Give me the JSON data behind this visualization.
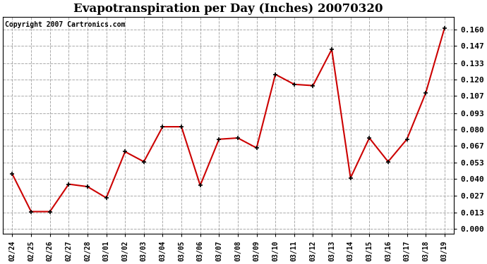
{
  "title": "Evapotranspiration per Day (Inches) 20070320",
  "copyright_text": "Copyright 2007 Cartronics.com",
  "x_labels": [
    "02/24",
    "02/25",
    "02/26",
    "02/27",
    "02/28",
    "03/01",
    "03/02",
    "03/03",
    "03/04",
    "03/05",
    "03/06",
    "03/07",
    "03/08",
    "03/09",
    "03/10",
    "03/11",
    "03/12",
    "03/13",
    "03/14",
    "03/15",
    "03/16",
    "03/17",
    "03/18",
    "03/19"
  ],
  "y_values": [
    0.044,
    0.014,
    0.014,
    0.036,
    0.034,
    0.025,
    0.062,
    0.054,
    0.082,
    0.082,
    0.035,
    0.072,
    0.073,
    0.065,
    0.124,
    0.116,
    0.115,
    0.144,
    0.041,
    0.073,
    0.054,
    0.072,
    0.109,
    0.161
  ],
  "line_color": "#cc0000",
  "marker": "+",
  "marker_color": "#000000",
  "marker_size": 5,
  "line_width": 1.5,
  "y_ticks": [
    0.0,
    0.013,
    0.027,
    0.04,
    0.053,
    0.067,
    0.08,
    0.093,
    0.107,
    0.12,
    0.133,
    0.147,
    0.16
  ],
  "ylim": [
    -0.004,
    0.17
  ],
  "grid_color": "#aaaaaa",
  "grid_style": "--",
  "bg_color": "#ffffff",
  "plot_bg_color": "#ffffff",
  "title_fontsize": 12,
  "copyright_fontsize": 7,
  "tick_fontsize": 7,
  "ytick_fontsize": 8
}
